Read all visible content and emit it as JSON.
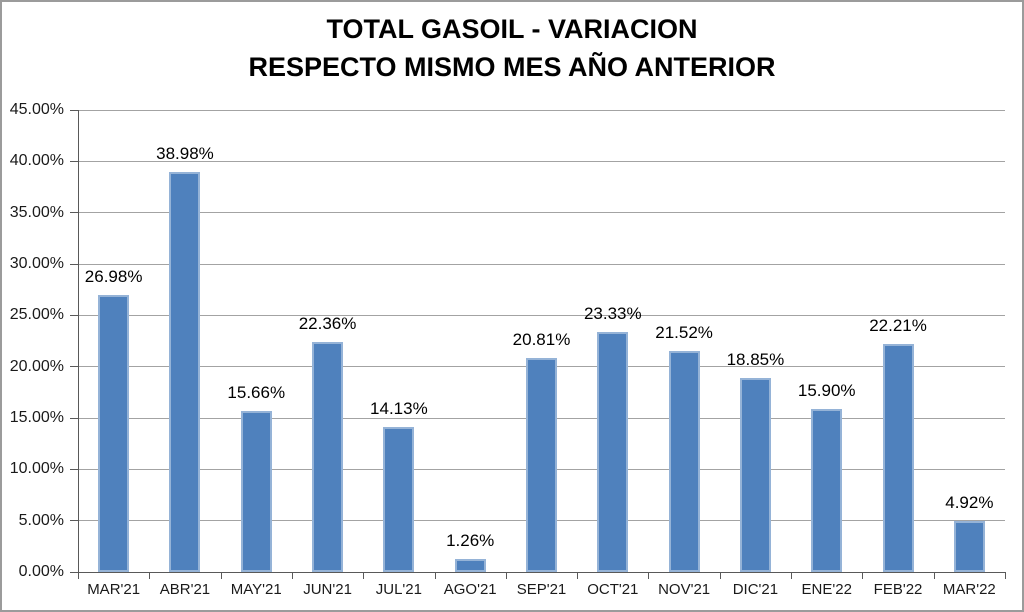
{
  "title_line1": "TOTAL GASOIL - VARIACION",
  "title_line2": "RESPECTO MISMO MES AÑO ANTERIOR",
  "chart_data": {
    "type": "bar",
    "title": "TOTAL GASOIL - VARIACION RESPECTO MISMO MES AÑO ANTERIOR",
    "categories": [
      "MAR'21",
      "ABR'21",
      "MAY'21",
      "JUN'21",
      "JUL'21",
      "AGO'21",
      "SEP'21",
      "OCT'21",
      "NOV'21",
      "DIC'21",
      "ENE'22",
      "FEB'22",
      "MAR'22"
    ],
    "values": [
      26.98,
      38.98,
      15.66,
      22.36,
      14.13,
      1.26,
      20.81,
      23.33,
      21.52,
      18.85,
      15.9,
      22.21,
      4.92
    ],
    "data_labels": [
      "26.98%",
      "38.98%",
      "15.66%",
      "22.36%",
      "14.13%",
      "1.26%",
      "20.81%",
      "23.33%",
      "21.52%",
      "18.85%",
      "15.90%",
      "22.21%",
      "4.92%"
    ],
    "xlabel": "",
    "ylabel": "",
    "ylim": [
      0,
      45
    ],
    "ytick_step": 5,
    "ytick_labels": [
      "0.00%",
      "5.00%",
      "10.00%",
      "15.00%",
      "20.00%",
      "25.00%",
      "30.00%",
      "35.00%",
      "40.00%",
      "45.00%"
    ],
    "grid": true,
    "legend_position": "none",
    "bar_color": "#4F81BD",
    "bar_border_color": "#95B3D7",
    "gridline_color": "#a3a3a3",
    "axis_color": "#595959"
  }
}
